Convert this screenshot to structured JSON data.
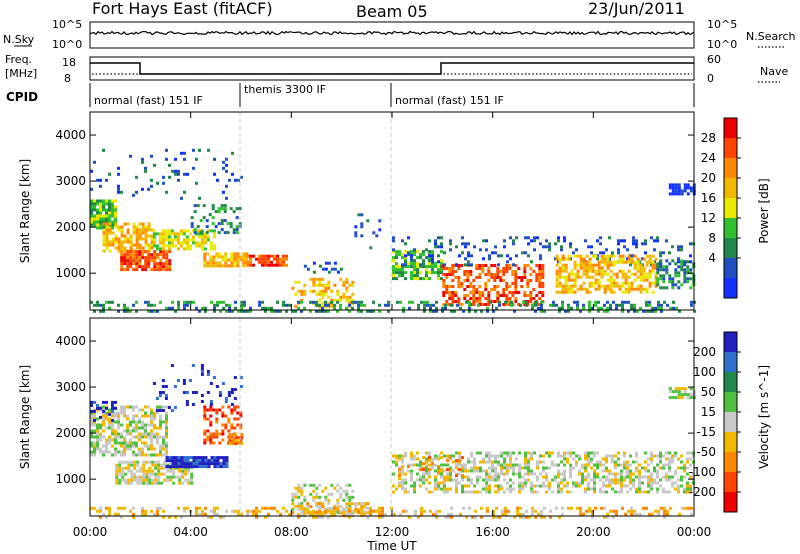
{
  "header": {
    "station": "Fort Hays East (fitACF)",
    "beam": "Beam 05",
    "date": "23/Jun/2011"
  },
  "top_panels": {
    "nsky_label": "N.Sky",
    "nsky_ticks": [
      "10^5",
      "10^0"
    ],
    "nsearch_label": "N.Search",
    "nsearch_ticks": [
      "10^5",
      "10^0"
    ],
    "freq_label": "Freq.",
    "freq_unit": "[MHz]",
    "freq_ticks": [
      "18",
      "8"
    ],
    "nave_label": "Nave",
    "nave_ticks": [
      "60",
      "0"
    ],
    "cpid_label": "CPID",
    "cpid_segments": [
      {
        "label": "normal (fast) 151 IF",
        "start_hr": 0,
        "end_hr": 6
      },
      {
        "label": "themis 3300 IF",
        "start_hr": 6,
        "end_hr": 12
      },
      {
        "label": "normal (fast) 151 IF",
        "start_hr": 12,
        "end_hr": 24
      }
    ]
  },
  "chart_data": [
    {
      "type": "heatmap",
      "name": "power",
      "ylabel": "Slant Range [km]",
      "xlabel": "Time UT",
      "xlim": [
        0,
        24
      ],
      "ylim": [
        200,
        4500
      ],
      "xticks": [
        "00:00",
        "04:00",
        "08:00",
        "12:00",
        "16:00",
        "20:00",
        "00:00"
      ],
      "yticks": [
        1000,
        2000,
        3000,
        4000
      ],
      "colorbar": {
        "label": "Power [dB]",
        "ticks": [
          "28",
          "24",
          "20",
          "16",
          "12",
          "8",
          "4"
        ],
        "colors": [
          "#ee0000",
          "#ff4400",
          "#ff8800",
          "#f0b800",
          "#e8e800",
          "#30c030",
          "#208848",
          "#2050c0",
          "#1030ff"
        ]
      },
      "regions": [
        {
          "t0": 0.0,
          "t1": 1.0,
          "r0": 2000,
          "r1": 2600,
          "level": 5,
          "density": 0.85
        },
        {
          "t0": 0.5,
          "t1": 2.5,
          "r0": 1500,
          "r1": 2100,
          "level": 3,
          "density": 0.7
        },
        {
          "t0": 1.2,
          "t1": 3.2,
          "r0": 1100,
          "r1": 1500,
          "level": 1,
          "density": 0.85
        },
        {
          "t0": 2.5,
          "t1": 5.0,
          "r0": 1500,
          "r1": 1950,
          "level": 4,
          "density": 0.7
        },
        {
          "t0": 4.0,
          "t1": 6.0,
          "r0": 1900,
          "r1": 2500,
          "level": 6,
          "density": 0.35
        },
        {
          "t0": 4.5,
          "t1": 6.2,
          "r0": 1150,
          "r1": 1450,
          "level": 3,
          "density": 0.8
        },
        {
          "t0": 6.2,
          "t1": 7.8,
          "r0": 1150,
          "r1": 1400,
          "level": 1,
          "density": 0.85
        },
        {
          "t0": 8.0,
          "t1": 10.5,
          "r0": 300,
          "r1": 900,
          "level": 3,
          "density": 0.35
        },
        {
          "t0": 8.5,
          "t1": 10.0,
          "r0": 1000,
          "r1": 1250,
          "level": 7,
          "density": 0.3
        },
        {
          "t0": 10.5,
          "t1": 11.5,
          "r0": 1500,
          "r1": 2300,
          "level": 7,
          "density": 0.15
        },
        {
          "t0": 12.0,
          "t1": 14.0,
          "r0": 900,
          "r1": 1500,
          "level": 5,
          "density": 0.6
        },
        {
          "t0": 14.0,
          "t1": 18.0,
          "r0": 300,
          "r1": 1200,
          "level": 1,
          "density": 0.55
        },
        {
          "t0": 12.0,
          "t1": 24.0,
          "r0": 1200,
          "r1": 1800,
          "level": 7,
          "density": 0.18
        },
        {
          "t0": 18.5,
          "t1": 22.5,
          "r0": 600,
          "r1": 1400,
          "level": 3,
          "density": 0.6
        },
        {
          "t0": 22.5,
          "t1": 24.0,
          "r0": 700,
          "r1": 1300,
          "level": 6,
          "density": 0.55
        },
        {
          "t0": 23.0,
          "t1": 24.0,
          "r0": 2750,
          "r1": 2950,
          "level": 8,
          "density": 0.8
        },
        {
          "t0": 0.0,
          "t1": 24.0,
          "r0": 200,
          "r1": 400,
          "level": 6,
          "density": 0.35
        },
        {
          "t0": 0.0,
          "t1": 6.0,
          "r0": 2600,
          "r1": 3700,
          "level": 7,
          "density": 0.08
        }
      ]
    },
    {
      "type": "heatmap",
      "name": "velocity",
      "ylabel": "Slant Range [km]",
      "xlabel": "Time UT",
      "xlim": [
        0,
        24
      ],
      "ylim": [
        200,
        4500
      ],
      "xticks": [
        "00:00",
        "04:00",
        "08:00",
        "12:00",
        "16:00",
        "20:00",
        "00:00"
      ],
      "yticks": [
        1000,
        2000,
        3000,
        4000
      ],
      "colorbar": {
        "label": "Velocity [m s^-1]",
        "ticks": [
          "200",
          "100",
          "50",
          "15",
          "-15",
          "-50",
          "-100",
          "-200"
        ],
        "colors": [
          "#2020c0",
          "#3070d0",
          "#208848",
          "#50c040",
          "#c8c8c8",
          "#f0b800",
          "#ff8800",
          "#ff4400",
          "#ee0000"
        ]
      },
      "regions": [
        {
          "t0": 0.0,
          "t1": 3.0,
          "r0": 1500,
          "r1": 2600,
          "level": 4,
          "density": 0.65
        },
        {
          "t0": 0.0,
          "t1": 1.0,
          "r0": 2300,
          "r1": 2700,
          "level": 0,
          "density": 0.4
        },
        {
          "t0": 1.0,
          "t1": 4.0,
          "r0": 900,
          "r1": 1400,
          "level": 4,
          "density": 0.75
        },
        {
          "t0": 3.0,
          "t1": 5.5,
          "r0": 1300,
          "r1": 1500,
          "level": 0,
          "density": 0.9
        },
        {
          "t0": 4.5,
          "t1": 6.0,
          "r0": 1800,
          "r1": 2600,
          "level": 7,
          "density": 0.4
        },
        {
          "t0": 5.5,
          "t1": 6.0,
          "r0": 1800,
          "r1": 2000,
          "level": 6,
          "density": 0.7
        },
        {
          "t0": 8.0,
          "t1": 10.5,
          "r0": 300,
          "r1": 900,
          "level": 4,
          "density": 0.45
        },
        {
          "t0": 8.0,
          "t1": 11.0,
          "r0": 200,
          "r1": 500,
          "level": 5,
          "density": 0.5
        },
        {
          "t0": 12.0,
          "t1": 24.0,
          "r0": 700,
          "r1": 1600,
          "level": 4,
          "density": 0.5
        },
        {
          "t0": 12.0,
          "t1": 15.0,
          "r0": 1000,
          "r1": 1500,
          "level": 6,
          "density": 0.12
        },
        {
          "t0": 23.0,
          "t1": 24.0,
          "r0": 2800,
          "r1": 3000,
          "level": 4,
          "density": 0.7
        },
        {
          "t0": 0.0,
          "t1": 24.0,
          "r0": 200,
          "r1": 400,
          "level": 5,
          "density": 0.35
        },
        {
          "t0": 2.5,
          "t1": 6.0,
          "r0": 2500,
          "r1": 3500,
          "level": 0,
          "density": 0.1
        }
      ]
    }
  ]
}
